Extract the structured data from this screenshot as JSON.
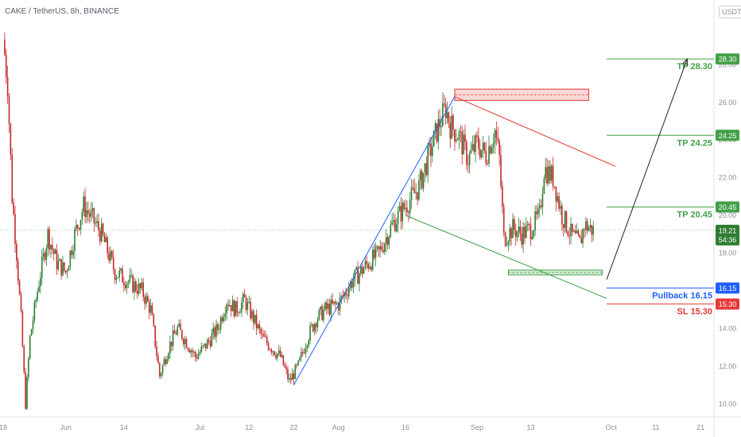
{
  "header": {
    "symbol": "CAKE / TetherUS, 8h, BINANCE",
    "currency": "USDT"
  },
  "colors": {
    "up": "#2e7d32",
    "down": "#c62828",
    "tp": "#43a047",
    "sl": "#e53935",
    "pullback": "#1e5eff",
    "axis_text": "#8a8f99",
    "last_price": "#26a69a"
  },
  "chart_data": {
    "type": "candlestick",
    "title": "CAKE / TetherUS, 8h, BINANCE",
    "ylim": [
      9.3,
      30.5
    ],
    "xlim": [
      "2021-05-18",
      "2021-10-24"
    ],
    "y_ticks": [
      "10.00",
      "12.00",
      "14.00",
      "16.00",
      "18.00",
      "20.00",
      "22.00",
      "24.00",
      "26.00",
      "28.00"
    ],
    "x_ticks": [
      {
        "date": "2021-05-18",
        "label": "18"
      },
      {
        "date": "2021-06-01",
        "label": "Jun"
      },
      {
        "date": "2021-06-14",
        "label": "14"
      },
      {
        "date": "2021-07-01",
        "label": "Jul"
      },
      {
        "date": "2021-07-12",
        "label": "12"
      },
      {
        "date": "2021-07-22",
        "label": "22"
      },
      {
        "date": "2021-08-01",
        "label": "Aug"
      },
      {
        "date": "2021-08-16",
        "label": "16"
      },
      {
        "date": "2021-09-01",
        "label": "Sep"
      },
      {
        "date": "2021-09-13",
        "label": "13"
      },
      {
        "date": "2021-10-01",
        "label": "Oct"
      },
      {
        "date": "2021-10-11",
        "label": "11"
      },
      {
        "date": "2021-10-21",
        "label": "21"
      }
    ],
    "price_path": [
      [
        "2021-05-18",
        29.3
      ],
      [
        "2021-05-19",
        27.0
      ],
      [
        "2021-05-20",
        21.0
      ],
      [
        "2021-05-21",
        18.0
      ],
      [
        "2021-05-22",
        14.5
      ],
      [
        "2021-05-23",
        10.0
      ],
      [
        "2021-05-24",
        13.5
      ],
      [
        "2021-05-26",
        16.5
      ],
      [
        "2021-05-28",
        19.0
      ],
      [
        "2021-05-30",
        17.5
      ],
      [
        "2021-06-01",
        17.0
      ],
      [
        "2021-06-03",
        19.0
      ],
      [
        "2021-06-05",
        20.5
      ],
      [
        "2021-06-07",
        19.8
      ],
      [
        "2021-06-09",
        19.0
      ],
      [
        "2021-06-12",
        17.0
      ],
      [
        "2021-06-15",
        16.5
      ],
      [
        "2021-06-18",
        16.0
      ],
      [
        "2021-06-20",
        15.0
      ],
      [
        "2021-06-22",
        11.5
      ],
      [
        "2021-06-24",
        13.0
      ],
      [
        "2021-06-26",
        14.0
      ],
      [
        "2021-06-28",
        13.3
      ],
      [
        "2021-06-30",
        12.5
      ],
      [
        "2021-07-02",
        13.0
      ],
      [
        "2021-07-05",
        14.0
      ],
      [
        "2021-07-07",
        15.5
      ],
      [
        "2021-07-09",
        15.0
      ],
      [
        "2021-07-11",
        15.5
      ],
      [
        "2021-07-13",
        14.5
      ],
      [
        "2021-07-15",
        13.5
      ],
      [
        "2021-07-17",
        13.0
      ],
      [
        "2021-07-19",
        12.5
      ],
      [
        "2021-07-21",
        11.2
      ],
      [
        "2021-07-23",
        12.0
      ],
      [
        "2021-07-25",
        13.5
      ],
      [
        "2021-07-27",
        14.5
      ],
      [
        "2021-07-29",
        15.0
      ],
      [
        "2021-08-01",
        15.3
      ],
      [
        "2021-08-04",
        16.5
      ],
      [
        "2021-08-07",
        17.3
      ],
      [
        "2021-08-10",
        18.0
      ],
      [
        "2021-08-13",
        19.5
      ],
      [
        "2021-08-16",
        20.5
      ],
      [
        "2021-08-19",
        21.5
      ],
      [
        "2021-08-21",
        23.0
      ],
      [
        "2021-08-23",
        24.5
      ],
      [
        "2021-08-25",
        25.7
      ],
      [
        "2021-08-26",
        24.8
      ],
      [
        "2021-08-28",
        24.2
      ],
      [
        "2021-08-30",
        23.0
      ],
      [
        "2021-09-01",
        23.8
      ],
      [
        "2021-09-03",
        23.2
      ],
      [
        "2021-09-05",
        24.5
      ],
      [
        "2021-09-06",
        23.0
      ],
      [
        "2021-09-07",
        18.8
      ],
      [
        "2021-09-09",
        19.3
      ],
      [
        "2021-09-11",
        19.0
      ],
      [
        "2021-09-13",
        19.3
      ],
      [
        "2021-09-15",
        20.0
      ],
      [
        "2021-09-16",
        22.5
      ],
      [
        "2021-09-18",
        22.0
      ],
      [
        "2021-09-20",
        20.0
      ],
      [
        "2021-09-22",
        19.0
      ],
      [
        "2021-09-24",
        18.5
      ],
      [
        "2021-09-25",
        19.5
      ],
      [
        "2021-09-27",
        19.2
      ]
    ],
    "price_lines": [
      {
        "name": "TP",
        "label": "TP 28.30",
        "axis_label": "28.30",
        "value": 28.3,
        "color": "#43a047"
      },
      {
        "name": "TP",
        "label": "TP 24.25",
        "axis_label": "24.25",
        "value": 24.25,
        "color": "#43a047"
      },
      {
        "name": "TP",
        "label": "TP 20.45",
        "axis_label": "20.45",
        "value": 20.45,
        "color": "#43a047"
      },
      {
        "name": "Pullback",
        "label": "Pullback 16.15",
        "axis_label": "16.15",
        "value": 16.15,
        "color": "#1e5eff"
      },
      {
        "name": "SL",
        "label": "SL 15.30",
        "axis_label": "15.30",
        "value": 15.3,
        "color": "#e53935"
      }
    ],
    "last_price": {
      "value": 19.21,
      "label": "19.21",
      "countdown": "54:36"
    },
    "zones": [
      {
        "name": "resistance-zone",
        "start": "2021-08-27",
        "end": "2021-09-26",
        "low": 26.1,
        "high": 26.7,
        "color": "#e53935"
      },
      {
        "name": "support-zone",
        "start": "2021-09-08",
        "end": "2021-09-29",
        "low": 16.9,
        "high": 17.1,
        "color": "#43a047"
      }
    ],
    "trendlines": [
      {
        "name": "rising-trendline",
        "from": [
          "2021-07-22",
          11.0
        ],
        "to": [
          "2021-08-27",
          26.3
        ],
        "color": "#1e5eff"
      },
      {
        "name": "upper-channel-line",
        "from": [
          "2021-08-27",
          26.3
        ],
        "to": [
          "2021-10-02",
          22.6
        ],
        "color": "#e53935"
      },
      {
        "name": "lower-channel-line",
        "from": [
          "2021-08-16",
          20.0
        ],
        "to": [
          "2021-09-30",
          15.6
        ],
        "color": "#43a047"
      }
    ],
    "projection_arrow": {
      "from": [
        "2021-09-30",
        16.6
      ],
      "to": [
        "2021-10-18",
        28.3
      ]
    }
  }
}
